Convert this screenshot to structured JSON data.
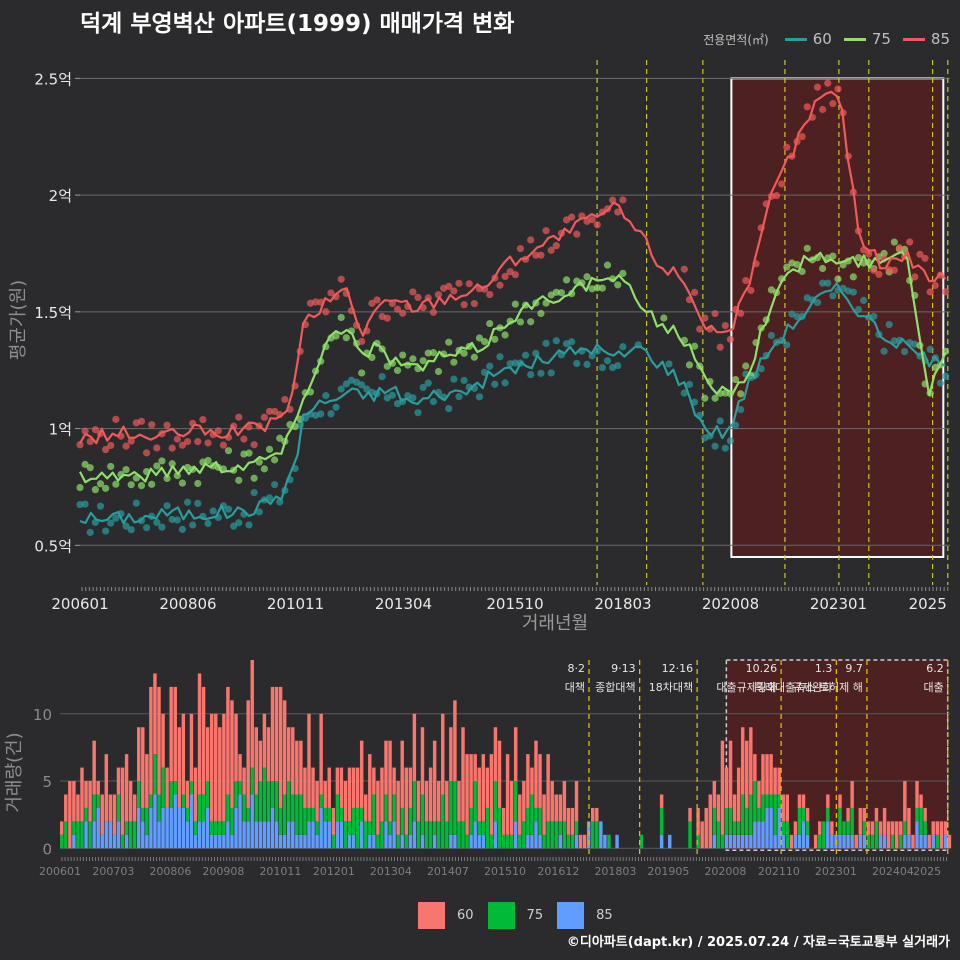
{
  "title": "덕계 부영벽산 아파트(1999) 매매가격 변화",
  "legend": {
    "title": "전용면적(㎡)",
    "items": [
      {
        "label": "60",
        "color": "#2a9d9f"
      },
      {
        "label": "75",
        "color": "#8fe06a"
      },
      {
        "label": "85",
        "color": "#f05a5a"
      }
    ]
  },
  "footer": "©디아파트(dapt.kr) / 2025.07.24 / 자료=국토교통부 실거래가",
  "chart_data": [
    {
      "type": "line",
      "ylabel": "평균가(원)",
      "xlabel": "거래년월",
      "y_tick_labels": [
        "0.5억",
        "1억",
        "1.5억",
        "2억",
        "2.5억"
      ],
      "y_ticks": [
        0.5,
        1,
        1.5,
        2,
        2.5
      ],
      "ylim": [
        0.33,
        2.6
      ],
      "x_tick_labels": [
        "200601",
        "200806",
        "201011",
        "201304",
        "201510",
        "201803",
        "202008",
        "202301",
        "2025"
      ],
      "x_ticks": [
        2006.0,
        2008.42,
        2010.83,
        2013.25,
        2015.75,
        2018.17,
        2020.58,
        2023.0,
        2025.0
      ],
      "xlim": [
        2006.0,
        2025.5
      ],
      "grid": true,
      "highlight_box": {
        "x": [
          2020.6,
          2025.35
        ],
        "y": [
          0.45,
          2.5
        ]
      },
      "policy_lines": [
        2017.59,
        2018.7,
        2019.96,
        2021.8,
        2023.01,
        2023.68,
        2025.11,
        2025.45
      ],
      "series": [
        {
          "name": "60",
          "color": "#2a9d9f",
          "x": [
            2006.0,
            2006.5,
            2007.0,
            2007.5,
            2008.0,
            2008.5,
            2009.0,
            2009.5,
            2010.0,
            2010.5,
            2010.8,
            2011.0,
            2011.3,
            2011.6,
            2012.0,
            2012.5,
            2013.0,
            2013.5,
            2014.0,
            2014.5,
            2015.0,
            2015.5,
            2016.0,
            2016.5,
            2017.0,
            2017.5,
            2018.0,
            2018.5,
            2019.0,
            2019.5,
            2020.0,
            2020.5,
            2021.0,
            2021.5,
            2022.0,
            2022.5,
            2023.0,
            2023.5,
            2024.0,
            2024.5,
            2025.0,
            2025.4
          ],
          "values": [
            0.62,
            0.61,
            0.62,
            0.62,
            0.64,
            0.63,
            0.64,
            0.64,
            0.66,
            0.72,
            0.82,
            1.05,
            1.1,
            1.12,
            1.15,
            1.14,
            1.17,
            1.1,
            1.15,
            1.15,
            1.2,
            1.25,
            1.27,
            1.3,
            1.33,
            1.35,
            1.3,
            1.35,
            1.28,
            1.2,
            1.0,
            0.98,
            1.2,
            1.35,
            1.45,
            1.55,
            1.6,
            1.5,
            1.4,
            1.35,
            1.3,
            1.25
          ]
        },
        {
          "name": "75",
          "color": "#8fe06a",
          "x": [
            2006.0,
            2006.5,
            2007.0,
            2007.5,
            2008.0,
            2008.5,
            2009.0,
            2009.5,
            2010.0,
            2010.5,
            2010.8,
            2011.0,
            2011.3,
            2011.6,
            2012.0,
            2012.3,
            2012.6,
            2013.0,
            2013.5,
            2014.0,
            2014.5,
            2015.0,
            2015.5,
            2016.0,
            2016.5,
            2017.0,
            2017.5,
            2018.0,
            2018.5,
            2019.0,
            2019.5,
            2020.0,
            2020.5,
            2021.0,
            2021.5,
            2022.0,
            2022.5,
            2023.0,
            2023.5,
            2024.0,
            2024.5,
            2025.0,
            2025.4
          ],
          "values": [
            0.8,
            0.8,
            0.8,
            0.8,
            0.82,
            0.83,
            0.84,
            0.84,
            0.86,
            0.9,
            1.0,
            1.15,
            1.25,
            1.4,
            1.45,
            1.3,
            1.35,
            1.3,
            1.25,
            1.3,
            1.32,
            1.35,
            1.45,
            1.52,
            1.55,
            1.6,
            1.62,
            1.65,
            1.55,
            1.45,
            1.4,
            1.2,
            1.15,
            1.25,
            1.55,
            1.68,
            1.75,
            1.7,
            1.72,
            1.7,
            1.8,
            1.15,
            1.35
          ]
        },
        {
          "name": "85",
          "color": "#f05a5a",
          "x": [
            2006.0,
            2006.5,
            2007.0,
            2007.5,
            2008.0,
            2008.5,
            2009.0,
            2009.5,
            2010.0,
            2010.5,
            2010.8,
            2011.0,
            2011.3,
            2011.6,
            2012.0,
            2012.3,
            2012.6,
            2013.0,
            2013.5,
            2014.0,
            2014.5,
            2015.0,
            2015.5,
            2016.0,
            2016.5,
            2017.0,
            2017.5,
            2018.0,
            2018.5,
            2019.0,
            2019.5,
            2020.0,
            2020.5,
            2021.0,
            2021.5,
            2022.0,
            2022.5,
            2023.0,
            2023.5,
            2024.0,
            2024.5,
            2025.0,
            2025.4
          ],
          "values": [
            0.95,
            0.97,
            0.98,
            0.96,
            0.97,
            0.99,
            0.98,
            0.99,
            1.0,
            1.05,
            1.15,
            1.45,
            1.5,
            1.55,
            1.6,
            1.4,
            1.5,
            1.55,
            1.52,
            1.55,
            1.58,
            1.6,
            1.7,
            1.75,
            1.8,
            1.85,
            1.9,
            1.95,
            1.85,
            1.7,
            1.65,
            1.45,
            1.4,
            1.6,
            2.0,
            2.2,
            2.4,
            2.45,
            1.8,
            1.7,
            1.75,
            1.65,
            1.65
          ]
        }
      ]
    },
    {
      "type": "bar",
      "ylabel": "거래량(건)",
      "y_ticks": [
        0,
        5,
        10
      ],
      "y_tick_labels": [
        "0",
        "5",
        "10"
      ],
      "ylim": [
        -0.5,
        14
      ],
      "x_tick_labels": [
        "200601",
        "200703",
        "200806",
        "200908",
        "201011",
        "201201",
        "201304",
        "201407",
        "201510",
        "201612",
        "201803",
        "201905",
        "202008",
        "202110",
        "202301",
        "202404",
        "2025"
      ],
      "x_ticks": [
        2006.0,
        2007.17,
        2008.42,
        2009.58,
        2010.83,
        2012.0,
        2013.25,
        2014.5,
        2015.75,
        2016.92,
        2018.17,
        2019.33,
        2020.58,
        2021.75,
        2023.0,
        2024.25,
        2025.0
      ],
      "xlim": [
        2006.0,
        2025.5
      ],
      "stacked": true,
      "legend": [
        "60",
        "75",
        "85"
      ],
      "legend_colors": [
        "#f8766d",
        "#00ba38",
        "#619cff"
      ],
      "series": [
        {
          "name": "85",
          "x": [
            2006.0,
            2006.5,
            2007.0,
            2007.5,
            2008.0,
            2008.5,
            2009.0,
            2009.5,
            2010.0,
            2010.5,
            2011.0,
            2011.5,
            2012.0,
            2012.5,
            2013.0,
            2013.5,
            2014.0,
            2014.5,
            2015.0,
            2015.5,
            2016.0,
            2016.5,
            2017.0,
            2017.5,
            2018.0,
            2018.5,
            2019.0,
            2019.5,
            2020.0,
            2020.5,
            2021.0,
            2021.5,
            2022.0,
            2022.5,
            2023.0,
            2023.5,
            2024.0,
            2024.5,
            2025.0
          ],
          "values": [
            1,
            1,
            2,
            1,
            3,
            4,
            2,
            2,
            3,
            3,
            2,
            2,
            1,
            1,
            1,
            1,
            1,
            1,
            1,
            1,
            1,
            1,
            1,
            1,
            1,
            0,
            0,
            1,
            0,
            1,
            2,
            2,
            1,
            1,
            1,
            1,
            0,
            1,
            1
          ]
        },
        {
          "name": "75",
          "x": [
            2006.0,
            2006.5,
            2007.0,
            2007.5,
            2008.0,
            2008.5,
            2009.0,
            2009.5,
            2010.0,
            2010.5,
            2011.0,
            2011.5,
            2012.0,
            2012.5,
            2013.0,
            2013.5,
            2014.0,
            2014.5,
            2015.0,
            2015.5,
            2016.0,
            2016.5,
            2017.0,
            2017.5,
            2018.0,
            2018.5,
            2019.0,
            2019.5,
            2020.0,
            2020.5,
            2021.0,
            2021.5,
            2022.0,
            2022.5,
            2023.0,
            2023.5,
            2024.0,
            2024.5,
            2025.0
          ],
          "values": [
            1,
            2,
            1,
            2,
            2,
            1,
            2,
            2,
            2,
            3,
            3,
            2,
            2,
            2,
            2,
            2,
            2,
            3,
            2,
            2,
            2,
            2,
            2,
            1,
            0,
            0,
            1,
            1,
            1,
            2,
            2,
            2,
            1,
            1,
            1,
            1,
            1,
            1,
            1
          ]
        },
        {
          "name": "60",
          "x": [
            2006.0,
            2006.5,
            2007.0,
            2007.5,
            2008.0,
            2008.5,
            2009.0,
            2009.5,
            2010.0,
            2010.5,
            2011.0,
            2011.5,
            2012.0,
            2012.5,
            2013.0,
            2013.5,
            2014.0,
            2014.5,
            2015.0,
            2015.5,
            2016.0,
            2016.5,
            2017.0,
            2017.5,
            2018.0,
            2018.5,
            2019.0,
            2019.5,
            2020.0,
            2020.5,
            2021.0,
            2021.5,
            2022.0,
            2022.5,
            2023.0,
            2023.5,
            2024.0,
            2024.5,
            2025.0
          ],
          "values": [
            3,
            4,
            3,
            4,
            5,
            4,
            5,
            5,
            5,
            6,
            6,
            4,
            3,
            3,
            3,
            4,
            3,
            5,
            4,
            4,
            3,
            3,
            3,
            1,
            0,
            0,
            1,
            1,
            1,
            4,
            3,
            2,
            1,
            1,
            1,
            1,
            1,
            2,
            1
          ]
        }
      ],
      "policy_annotations": [
        {
          "x": 2017.59,
          "date": "8·2",
          "text": "대책"
        },
        {
          "x": 2018.7,
          "date": "9·13",
          "text": "종합대책"
        },
        {
          "x": 2019.96,
          "date": "12·16",
          "text": "18차대책"
        },
        {
          "x": 2021.8,
          "date": "10.26",
          "text": "대출규제강화"
        },
        {
          "x": 2023.01,
          "date": "1.3",
          "text": "규제완화"
        },
        {
          "x": 2023.68,
          "date": "9.7",
          "text": "특례대출축소 토허제 해"
        },
        {
          "x": 2025.45,
          "date": "6.2",
          "text": "대출"
        }
      ]
    }
  ]
}
